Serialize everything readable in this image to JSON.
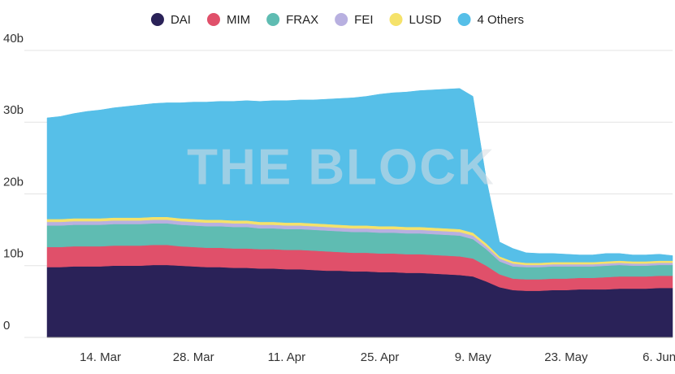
{
  "chart_data": {
    "type": "stacked-area",
    "watermark": "THE BLOCK",
    "categories": [
      null,
      null,
      null,
      null,
      "14. Mar",
      null,
      null,
      null,
      null,
      null,
      null,
      "28. Mar",
      null,
      null,
      null,
      null,
      null,
      null,
      "11. Apr",
      null,
      null,
      null,
      null,
      null,
      null,
      "25. Apr",
      null,
      null,
      null,
      null,
      null,
      null,
      "9. May",
      null,
      null,
      null,
      null,
      null,
      null,
      "23. May",
      null,
      null,
      null,
      null,
      null,
      null,
      "6. Jun",
      null
    ],
    "series": [
      {
        "name": "DAI",
        "color": "#2a2258",
        "values": [
          9.8,
          9.8,
          9.9,
          9.9,
          9.9,
          10.0,
          10.0,
          10.0,
          10.1,
          10.1,
          10.0,
          9.9,
          9.8,
          9.8,
          9.7,
          9.7,
          9.6,
          9.6,
          9.5,
          9.5,
          9.4,
          9.3,
          9.3,
          9.2,
          9.2,
          9.1,
          9.1,
          9.0,
          9.0,
          8.9,
          8.8,
          8.7,
          8.5,
          7.8,
          7.0,
          6.6,
          6.5,
          6.5,
          6.6,
          6.6,
          6.7,
          6.7,
          6.7,
          6.8,
          6.8,
          6.8,
          6.9,
          6.9
        ]
      },
      {
        "name": "MIM",
        "color": "#e0506a",
        "values": [
          2.8,
          2.8,
          2.8,
          2.8,
          2.8,
          2.8,
          2.8,
          2.8,
          2.8,
          2.8,
          2.7,
          2.7,
          2.7,
          2.7,
          2.7,
          2.7,
          2.7,
          2.7,
          2.7,
          2.7,
          2.7,
          2.7,
          2.6,
          2.6,
          2.6,
          2.6,
          2.6,
          2.6,
          2.6,
          2.6,
          2.6,
          2.6,
          2.5,
          2.2,
          1.8,
          1.6,
          1.6,
          1.6,
          1.6,
          1.6,
          1.6,
          1.6,
          1.7,
          1.7,
          1.7,
          1.7,
          1.7,
          1.7
        ]
      },
      {
        "name": "FRAX",
        "color": "#5fbcb2",
        "values": [
          3.0,
          3.0,
          3.0,
          3.0,
          3.0,
          3.0,
          3.0,
          3.0,
          3.0,
          3.0,
          3.0,
          3.0,
          3.0,
          3.0,
          3.0,
          3.0,
          2.9,
          2.9,
          2.9,
          2.9,
          2.9,
          2.9,
          2.9,
          2.9,
          2.9,
          2.9,
          2.9,
          2.9,
          2.9,
          2.9,
          2.9,
          2.9,
          2.7,
          2.3,
          1.8,
          1.7,
          1.7,
          1.7,
          1.7,
          1.7,
          1.6,
          1.6,
          1.6,
          1.6,
          1.5,
          1.5,
          1.5,
          1.5
        ]
      },
      {
        "name": "FEI",
        "color": "#b8b0e0",
        "values": [
          0.5,
          0.5,
          0.5,
          0.5,
          0.5,
          0.5,
          0.5,
          0.5,
          0.5,
          0.5,
          0.5,
          0.5,
          0.5,
          0.5,
          0.5,
          0.5,
          0.5,
          0.5,
          0.5,
          0.5,
          0.5,
          0.5,
          0.5,
          0.5,
          0.5,
          0.5,
          0.5,
          0.5,
          0.5,
          0.5,
          0.5,
          0.5,
          0.5,
          0.4,
          0.4,
          0.4,
          0.3,
          0.3,
          0.3,
          0.3,
          0.3,
          0.3,
          0.3,
          0.3,
          0.3,
          0.3,
          0.3,
          0.3
        ]
      },
      {
        "name": "LUSD",
        "color": "#f5e26a",
        "values": [
          0.4,
          0.4,
          0.4,
          0.4,
          0.4,
          0.4,
          0.4,
          0.4,
          0.4,
          0.4,
          0.4,
          0.4,
          0.4,
          0.4,
          0.4,
          0.4,
          0.4,
          0.4,
          0.4,
          0.4,
          0.4,
          0.4,
          0.4,
          0.4,
          0.4,
          0.4,
          0.4,
          0.4,
          0.4,
          0.4,
          0.4,
          0.4,
          0.4,
          0.4,
          0.3,
          0.3,
          0.3,
          0.3,
          0.3,
          0.3,
          0.3,
          0.3,
          0.3,
          0.3,
          0.3,
          0.3,
          0.3,
          0.3
        ]
      },
      {
        "name": "4 Others",
        "color": "#56bfe8",
        "values": [
          14.1,
          14.3,
          14.6,
          14.9,
          15.1,
          15.3,
          15.5,
          15.7,
          15.8,
          15.9,
          16.1,
          16.3,
          16.4,
          16.5,
          16.6,
          16.7,
          16.8,
          16.9,
          17.0,
          17.1,
          17.2,
          17.4,
          17.6,
          17.8,
          18.0,
          18.4,
          18.6,
          18.8,
          19.0,
          19.2,
          19.4,
          19.6,
          19.0,
          9.0,
          2.0,
          1.8,
          1.4,
          1.3,
          1.2,
          1.1,
          1.0,
          1.0,
          1.1,
          1.0,
          0.9,
          0.9,
          0.9,
          0.7
        ]
      }
    ],
    "ylim": [
      0,
      40
    ],
    "yticks": [
      {
        "value": 0,
        "label": "0"
      },
      {
        "value": 10,
        "label": "10b"
      },
      {
        "value": 20,
        "label": "20b"
      },
      {
        "value": 30,
        "label": "30b"
      },
      {
        "value": 40,
        "label": "40b"
      }
    ],
    "grid": true,
    "legend": "top"
  }
}
